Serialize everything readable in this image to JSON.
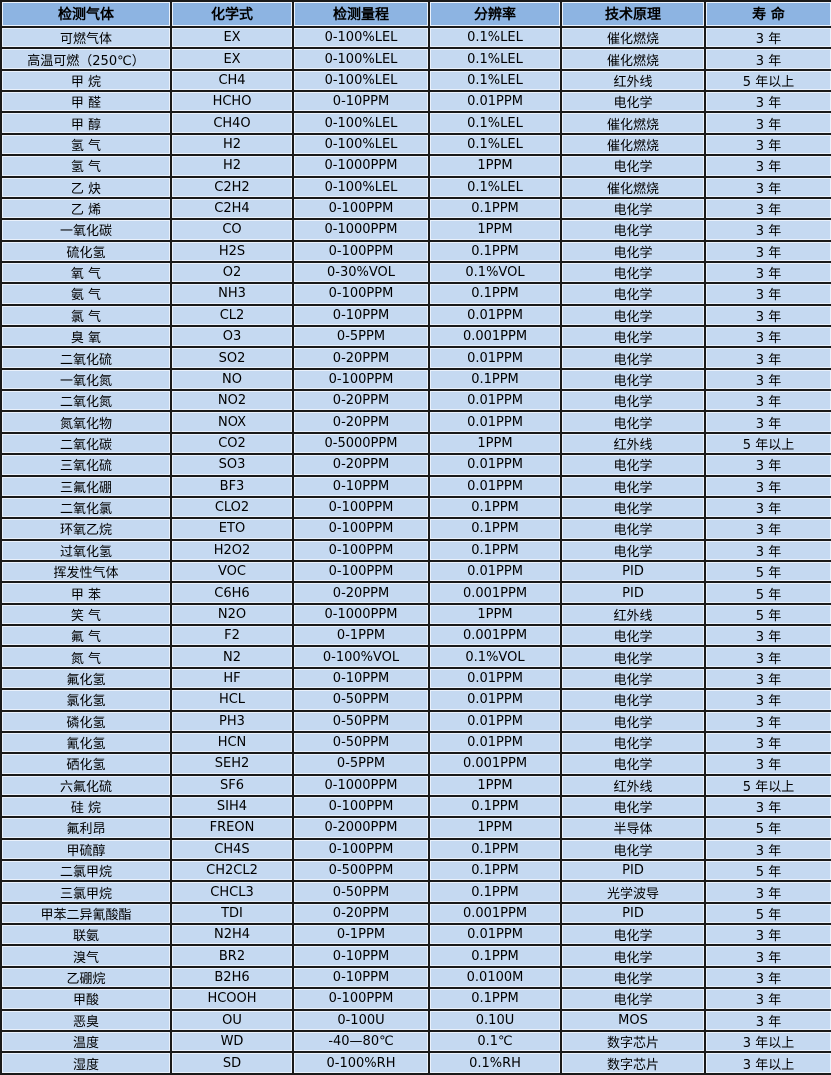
{
  "colors": {
    "header_bg": "#8db4e2",
    "row_bg": "#c5d9f1",
    "border": "#1a1a1a",
    "inner_highlight": "#eaf1fb",
    "text": "#000000"
  },
  "table": {
    "column_keys": [
      "gas",
      "formula",
      "range",
      "resolution",
      "principle",
      "lifespan"
    ],
    "columns": [
      "检测气体",
      "化学式",
      "检测量程",
      "分辨率",
      "技术原理",
      "寿 命"
    ],
    "rows": [
      [
        "可燃气体",
        "EX",
        "0-100%LEL",
        "0.1%LEL",
        "催化燃烧",
        "3 年"
      ],
      [
        "高温可燃（250℃）",
        "EX",
        "0-100%LEL",
        "0.1%LEL",
        "催化燃烧",
        "3 年"
      ],
      [
        "甲 烷",
        "CH4",
        "0-100%LEL",
        "0.1%LEL",
        "红外线",
        "5 年以上"
      ],
      [
        "甲 醛",
        "HCHO",
        "0-10PPM",
        "0.01PPM",
        "电化学",
        "3 年"
      ],
      [
        "甲 醇",
        "CH4O",
        "0-100%LEL",
        "0.1%LEL",
        "催化燃烧",
        "3 年"
      ],
      [
        "氢 气",
        "H2",
        "0-100%LEL",
        "0.1%LEL",
        "催化燃烧",
        "3 年"
      ],
      [
        "氢 气",
        "H2",
        "0-1000PPM",
        "1PPM",
        "电化学",
        "3 年"
      ],
      [
        "乙 炔",
        "C2H2",
        "0-100%LEL",
        "0.1%LEL",
        "催化燃烧",
        "3 年"
      ],
      [
        "乙 烯",
        "C2H4",
        "0-100PPM",
        "0.1PPM",
        "电化学",
        "3 年"
      ],
      [
        "一氧化碳",
        "CO",
        "0-1000PPM",
        "1PPM",
        "电化学",
        "3 年"
      ],
      [
        "硫化氢",
        "H2S",
        "0-100PPM",
        "0.1PPM",
        "电化学",
        "3 年"
      ],
      [
        "氧 气",
        "O2",
        "0-30%VOL",
        "0.1%VOL",
        "电化学",
        "3 年"
      ],
      [
        "氨 气",
        "NH3",
        "0-100PPM",
        "0.1PPM",
        "电化学",
        "3 年"
      ],
      [
        "氯 气",
        "CL2",
        "0-10PPM",
        "0.01PPM",
        "电化学",
        "3 年"
      ],
      [
        "臭 氧",
        "O3",
        "0-5PPM",
        "0.001PPM",
        "电化学",
        "3 年"
      ],
      [
        "二氧化硫",
        "SO2",
        "0-20PPM",
        "0.01PPM",
        "电化学",
        "3 年"
      ],
      [
        "一氧化氮",
        "NO",
        "0-100PPM",
        "0.1PPM",
        "电化学",
        "3 年"
      ],
      [
        "二氧化氮",
        "NO2",
        "0-20PPM",
        "0.01PPM",
        "电化学",
        "3 年"
      ],
      [
        "氮氧化物",
        "NOX",
        "0-20PPM",
        "0.01PPM",
        "电化学",
        "3 年"
      ],
      [
        "二氧化碳",
        "CO2",
        "0-5000PPM",
        "1PPM",
        "红外线",
        "5 年以上"
      ],
      [
        "三氧化硫",
        "SO3",
        "0-20PPM",
        "0.01PPM",
        "电化学",
        "3 年"
      ],
      [
        "三氟化硼",
        "BF3",
        "0-10PPM",
        "0.01PPM",
        "电化学",
        "3 年"
      ],
      [
        "二氧化氯",
        "CLO2",
        "0-100PPM",
        "0.1PPM",
        "电化学",
        "3 年"
      ],
      [
        "环氧乙烷",
        "ETO",
        "0-100PPM",
        "0.1PPM",
        "电化学",
        "3 年"
      ],
      [
        "过氧化氢",
        "H2O2",
        "0-100PPM",
        "0.1PPM",
        "电化学",
        "3 年"
      ],
      [
        "挥发性气体",
        "VOC",
        "0-100PPM",
        "0.01PPM",
        "PID",
        "5 年"
      ],
      [
        "甲 苯",
        "C6H6",
        "0-20PPM",
        "0.001PPM",
        "PID",
        "5 年"
      ],
      [
        "笑 气",
        "N2O",
        "0-1000PPM",
        "1PPM",
        "红外线",
        "5 年"
      ],
      [
        "氟 气",
        "F2",
        "0-1PPM",
        "0.001PPM",
        "电化学",
        "3 年"
      ],
      [
        "氮 气",
        "N2",
        "0-100%VOL",
        "0.1%VOL",
        "电化学",
        "3 年"
      ],
      [
        "氟化氢",
        "HF",
        "0-10PPM",
        "0.01PPM",
        "电化学",
        "3 年"
      ],
      [
        "氯化氢",
        "HCL",
        "0-50PPM",
        "0.01PPM",
        "电化学",
        "3 年"
      ],
      [
        "磷化氢",
        "PH3",
        "0-50PPM",
        "0.01PPM",
        "电化学",
        "3 年"
      ],
      [
        "氰化氢",
        "HCN",
        "0-50PPM",
        "0.01PPM",
        "电化学",
        "3 年"
      ],
      [
        "硒化氢",
        "SEH2",
        "0-5PPM",
        "0.001PPM",
        "电化学",
        "3 年"
      ],
      [
        "六氟化硫",
        "SF6",
        "0-1000PPM",
        "1PPM",
        "红外线",
        "5 年以上"
      ],
      [
        "硅 烷",
        "SIH4",
        "0-100PPM",
        "0.1PPM",
        "电化学",
        "3 年"
      ],
      [
        "氟利昂",
        "FREON",
        "0-2000PPM",
        "1PPM",
        "半导体",
        "5 年"
      ],
      [
        "甲硫醇",
        "CH4S",
        "0-100PPM",
        "0.1PPM",
        "电化学",
        "3 年"
      ],
      [
        "二氯甲烷",
        "CH2CL2",
        "0-500PPM",
        "0.1PPM",
        "PID",
        "5 年"
      ],
      [
        "三氯甲烷",
        "CHCL3",
        "0-50PPM",
        "0.1PPM",
        "光学波导",
        "3 年"
      ],
      [
        "甲苯二异氰酸酯",
        "TDI",
        "0-20PPM",
        "0.001PPM",
        "PID",
        "5 年"
      ],
      [
        "联氨",
        "N2H4",
        "0-1PPM",
        "0.01PPM",
        "电化学",
        "3 年"
      ],
      [
        "溴气",
        "BR2",
        "0-10PPM",
        "0.1PPM",
        "电化学",
        "3 年"
      ],
      [
        "乙硼烷",
        "B2H6",
        "0-10PPM",
        "0.0100M",
        "电化学",
        "3 年"
      ],
      [
        "甲酸",
        "HCOOH",
        "0-100PPM",
        "0.1PPM",
        "电化学",
        "3 年"
      ],
      [
        "恶臭",
        "OU",
        "0-100U",
        "0.10U",
        "MOS",
        "3 年"
      ],
      [
        "温度",
        "WD",
        "-40—80℃",
        "0.1℃",
        "数字芯片",
        "3 年以上"
      ],
      [
        "湿度",
        "SD",
        "0-100%RH",
        "0.1%RH",
        "数字芯片",
        "3 年以上"
      ]
    ]
  }
}
